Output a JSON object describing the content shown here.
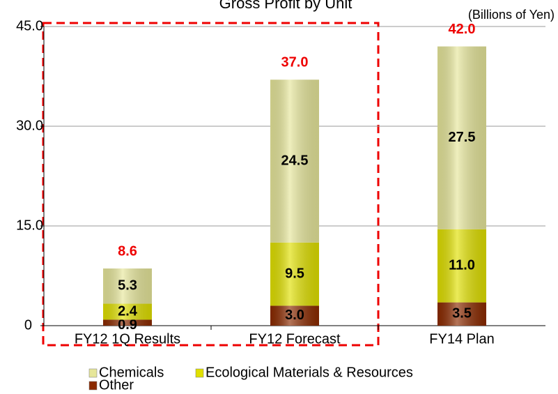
{
  "chart_data": {
    "type": "stacked_bar",
    "title": "Gross Profit by Unit",
    "unit_label": "(Billions of Yen)",
    "categories": [
      "FY12 1Q Results",
      "FY12 Forecast",
      "FY14 Plan"
    ],
    "series": [
      {
        "name": "Other",
        "color": "#8b2a00",
        "values": [
          0.9,
          3.0,
          3.5
        ],
        "value_labels": [
          "0.9",
          "3.0",
          "3.5"
        ]
      },
      {
        "name": "Ecological Materials & Resources",
        "color": "#e0e000",
        "values": [
          2.4,
          9.5,
          11.0
        ],
        "value_labels": [
          "2.4",
          "9.5",
          "11.0"
        ]
      },
      {
        "name": "Chemicals",
        "color": "#e6e69a",
        "values": [
          5.3,
          24.5,
          27.5
        ],
        "value_labels": [
          "5.3",
          "24.5",
          "27.5"
        ]
      }
    ],
    "totals": [
      8.6,
      37.0,
      42.0
    ],
    "total_labels": [
      "8.6",
      "37.0",
      "42.0"
    ],
    "ylim": [
      0,
      45
    ],
    "yticks": [
      0,
      {
        "value": 15,
        "label": "15.0"
      },
      {
        "value": 30,
        "label": "30.0"
      },
      {
        "value": 45,
        "label": "45.0"
      }
    ],
    "grid": true
  }
}
